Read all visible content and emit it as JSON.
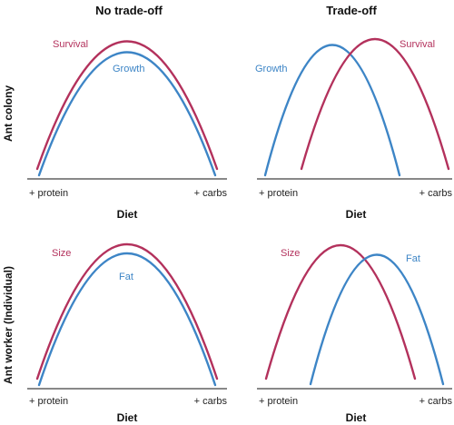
{
  "column_headers": [
    "No trade-off",
    "Trade-off"
  ],
  "row_labels": [
    "Ant colony",
    "Ant worker (Individual)"
  ],
  "colors": {
    "red": "#b3315c",
    "blue": "#3d85c6"
  },
  "panels": [
    {
      "xlabel": "Diet",
      "x_left": "+ protein",
      "x_right": "+ carbs",
      "curves": [
        {
          "label": "Survival",
          "color": "#b3315c"
        },
        {
          "label": "Growth",
          "color": "#3d85c6"
        }
      ]
    },
    {
      "xlabel": "Diet",
      "x_left": "+ protein",
      "x_right": "+ carbs",
      "curves": [
        {
          "label": "Growth",
          "color": "#3d85c6"
        },
        {
          "label": "Survival",
          "color": "#b3315c"
        }
      ]
    },
    {
      "xlabel": "Diet",
      "x_left": "+ protein",
      "x_right": "+ carbs",
      "curves": [
        {
          "label": "Size",
          "color": "#b3315c"
        },
        {
          "label": "Fat",
          "color": "#3d85c6"
        }
      ]
    },
    {
      "xlabel": "Diet",
      "x_left": "+ protein",
      "x_right": "+ carbs",
      "curves": [
        {
          "label": "Size",
          "color": "#b3315c"
        },
        {
          "label": "Fat",
          "color": "#3d85c6"
        }
      ]
    }
  ]
}
